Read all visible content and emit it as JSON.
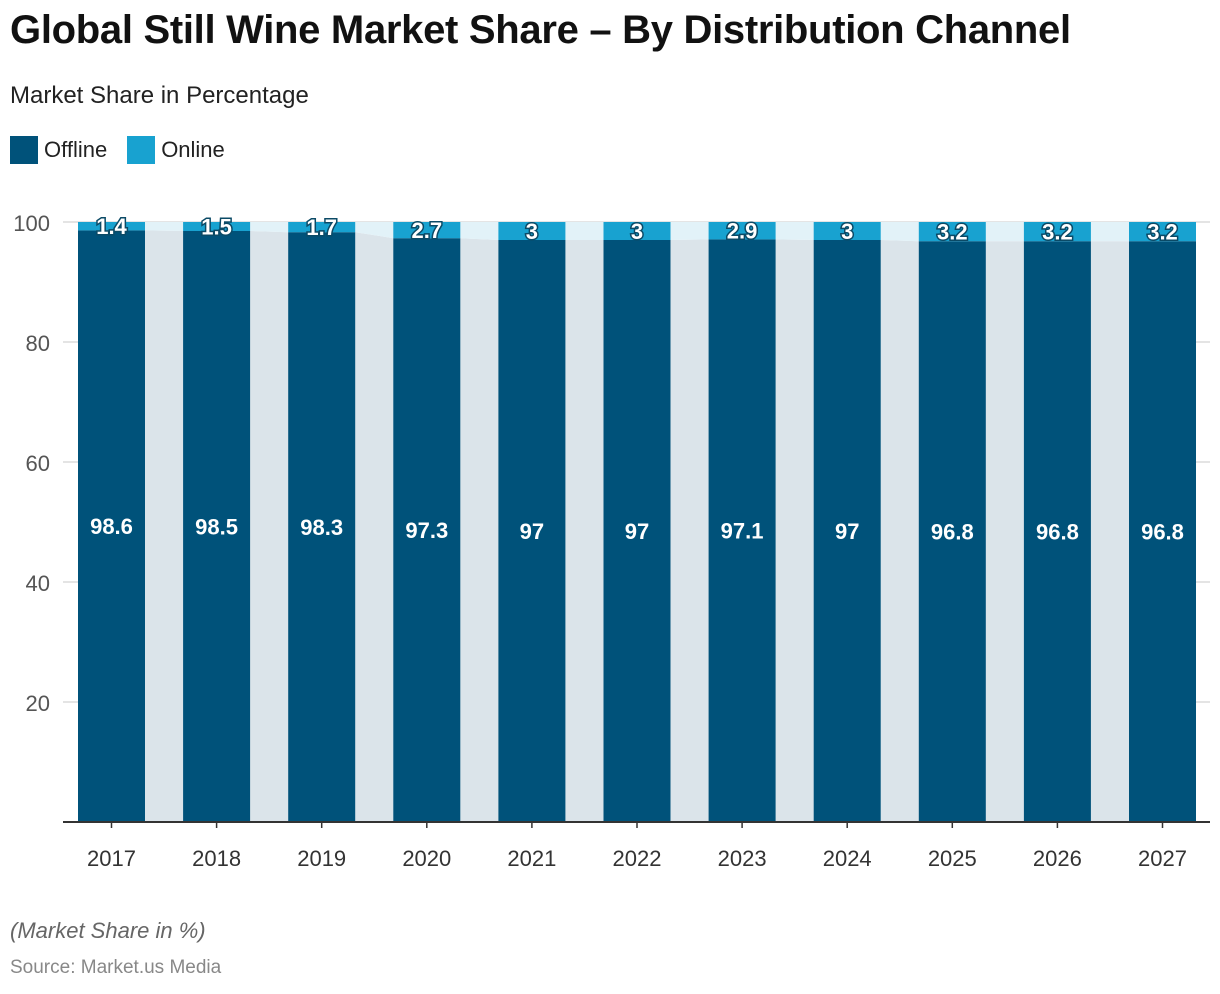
{
  "header": {
    "title": "Global Still Wine Market Share – By Distribution Channel",
    "subtitle": "Market Share in Percentage"
  },
  "legend": {
    "items": [
      {
        "label": "Offline",
        "color": "#00527a"
      },
      {
        "label": "Online",
        "color": "#18a2d0"
      }
    ]
  },
  "footer": {
    "note": "(Market Share in %)",
    "source": "Source: Market.us Media"
  },
  "chart_data": {
    "type": "bar",
    "stacked": true,
    "categories": [
      "2017",
      "2018",
      "2019",
      "2020",
      "2021",
      "2022",
      "2023",
      "2024",
      "2025",
      "2026",
      "2027"
    ],
    "series": [
      {
        "name": "Offline",
        "color": "#00527a",
        "values": [
          98.6,
          98.5,
          98.3,
          97.3,
          97,
          97,
          97.1,
          97,
          96.8,
          96.8,
          96.8
        ]
      },
      {
        "name": "Online",
        "color": "#18a2d0",
        "values": [
          1.4,
          1.5,
          1.7,
          2.7,
          3,
          3,
          2.9,
          3,
          3.2,
          3.2,
          3.2
        ]
      }
    ],
    "title": "Global Still Wine Market Share – By Distribution Channel",
    "subtitle": "Market Share in Percentage",
    "ylim": [
      0,
      100
    ],
    "yticks": [
      20,
      40,
      60,
      80,
      100
    ],
    "grid": true,
    "legend_position": "top-left",
    "data_labels": true
  }
}
